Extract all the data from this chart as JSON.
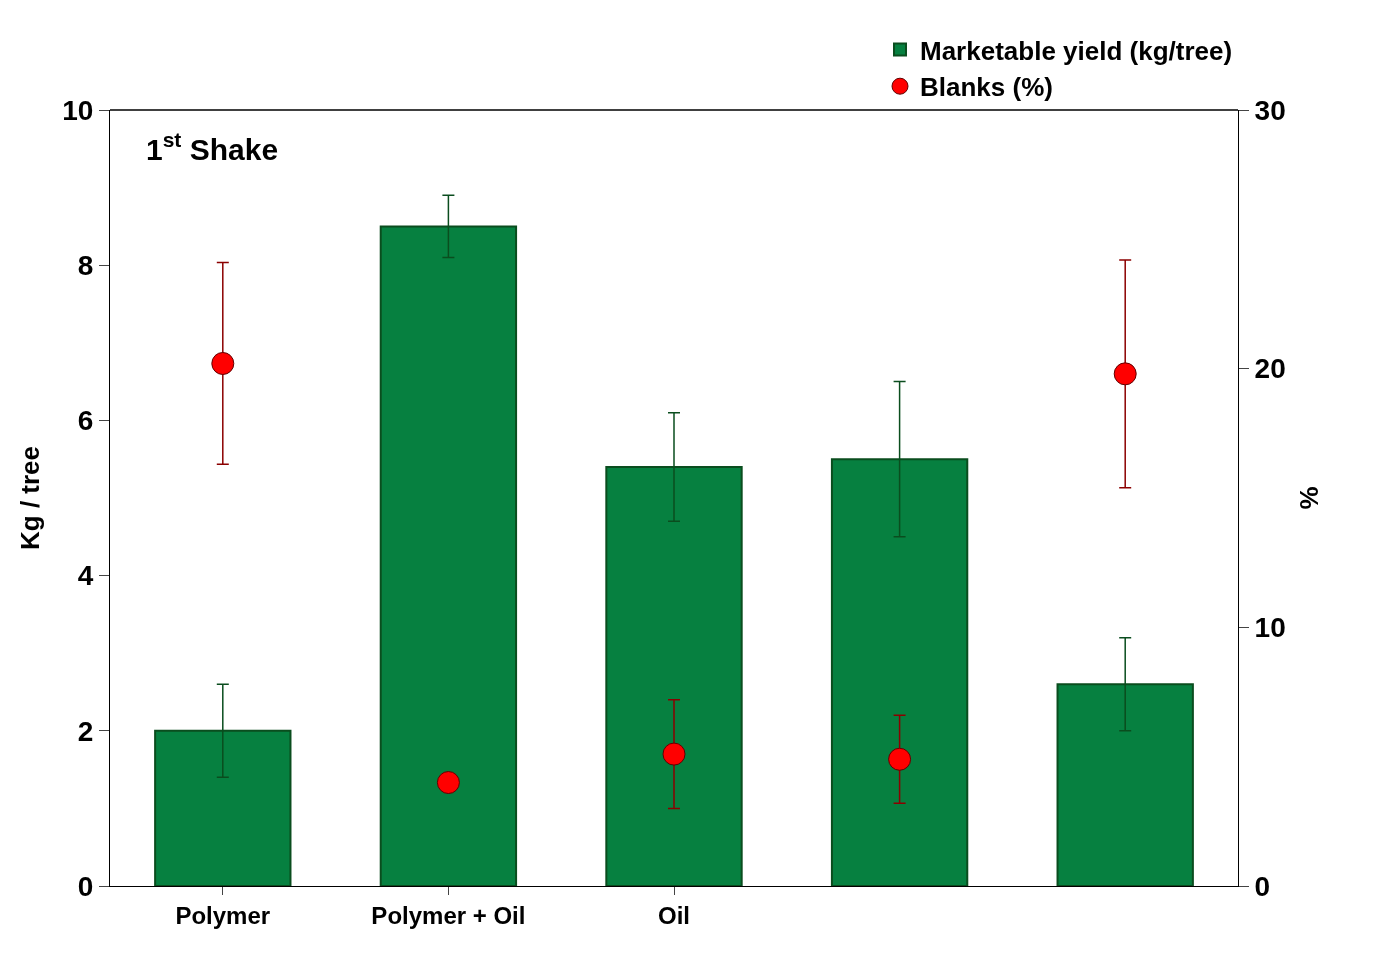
{
  "chart_data": {
    "type": "bar",
    "categories": [
      "Polymer",
      "Polymer + Oil",
      "Oil",
      null,
      null
    ],
    "ylabel": "Kg / tree",
    "y2label": "%",
    "annotations": [
      "1$^{st}$ Shake"
    ],
    "series": [
      {
        "name": "Marketable yield (kg/tree)",
        "color": "#068040",
        "values": [
          2.0,
          8.5,
          5.4,
          5.5,
          2.6
        ],
        "errors": [
          [
            1.4,
            2.6
          ],
          [
            8.1,
            8.9
          ],
          [
            4.7,
            6.1
          ],
          [
            4.5,
            6.5
          ],
          [
            2.0,
            3.2
          ]
        ]
      },
      {
        "name": "Blanks (%)",
        "type": "scatter",
        "axis": "y2",
        "color": "#ff0000",
        "marker": "circle",
        "values": [
          20.2,
          4.0,
          5.1,
          4.9,
          19.8
        ],
        "errors": [
          [
            16.3,
            24.1
          ],
          null,
          [
            3.0,
            7.2
          ],
          [
            3.2,
            6.6
          ],
          [
            15.4,
            24.2
          ]
        ]
      }
    ],
    "ylim": [
      0,
      10
    ],
    "yticks": [
      0,
      2,
      4,
      6,
      8,
      10
    ],
    "y2lim": [
      0,
      30
    ],
    "y2ticks": [
      0,
      10,
      20,
      30
    ],
    "legend": "top right"
  }
}
